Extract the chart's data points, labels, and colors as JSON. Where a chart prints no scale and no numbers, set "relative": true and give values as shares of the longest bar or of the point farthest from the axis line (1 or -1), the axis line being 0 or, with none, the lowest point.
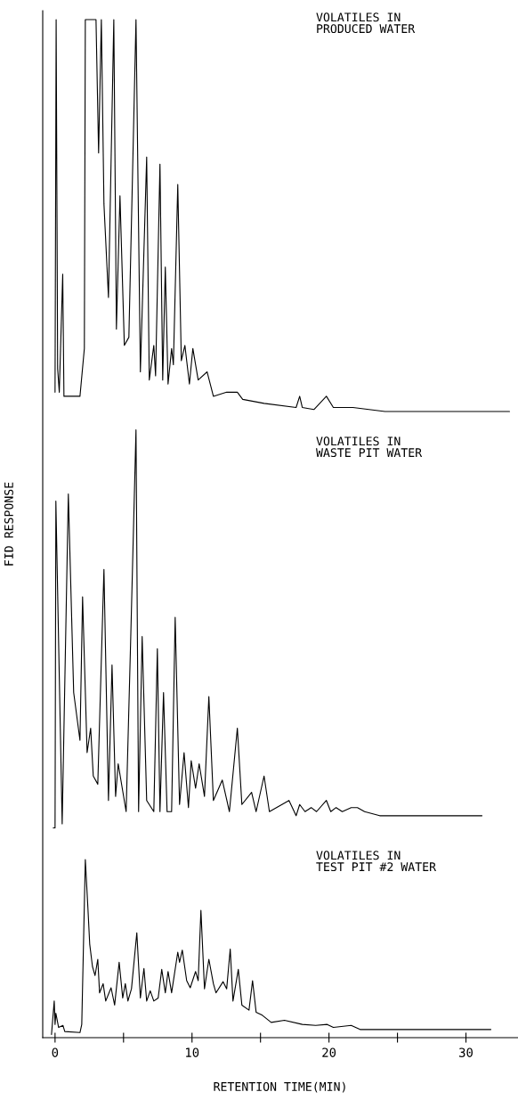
{
  "chart_data": {
    "type": "line",
    "xlabel": "RETENTION TIME(MIN)",
    "ylabel": "FID RESPONSE",
    "relative": true,
    "xlim": [
      -0.9,
      33.8
    ],
    "xticks": [
      0,
      {
        "value": 5,
        "label": null
      },
      10,
      {
        "value": 15,
        "label": null
      },
      20,
      {
        "value": 25,
        "label": null
      },
      30
    ],
    "annotations": [
      "VOLATILES IN\nPRODUCED WATER",
      "VOLATILES IN\nWASTE PIT WATER",
      "VOLATILES IN\nTEST PIT #2 WATER"
    ],
    "series": [
      {
        "color": "#000000",
        "x": [
          0.0,
          0.08,
          0.19,
          0.31,
          0.56,
          0.65,
          1.82,
          2.14,
          2.21,
          2.99,
          3.18,
          3.38,
          3.57,
          3.9,
          4.29,
          4.48,
          4.74,
          5.06,
          5.39,
          5.91,
          6.23,
          6.69,
          6.88,
          7.21,
          7.34,
          7.66,
          7.86,
          8.05,
          8.25,
          8.51,
          8.64,
          8.96,
          9.22,
          9.48,
          9.81,
          10.06,
          10.45,
          11.1,
          11.56,
          12.53,
          13.31,
          13.7,
          15.26,
          17.6,
          17.86,
          18.05,
          18.9,
          19.81,
          20.32,
          21.75,
          24.09,
          33.18
        ],
        "values": [
          0.634,
          1.0,
          0.657,
          0.634,
          0.75,
          0.63,
          0.63,
          0.677,
          1.0,
          1.0,
          0.869,
          1.0,
          0.819,
          0.727,
          1.0,
          0.696,
          0.827,
          0.68,
          0.688,
          1.0,
          0.654,
          0.865,
          0.646,
          0.68,
          0.65,
          0.858,
          0.646,
          0.757,
          0.642,
          0.677,
          0.661,
          0.838,
          0.665,
          0.68,
          0.642,
          0.677,
          0.646,
          0.654,
          0.63,
          0.634,
          0.634,
          0.627,
          0.623,
          0.619,
          0.63,
          0.619,
          0.617,
          0.63,
          0.619,
          0.619,
          0.615,
          0.615
        ]
      },
      {
        "color": "#000000",
        "x": [
          -0.13,
          0.0,
          0.06,
          0.52,
          0.97,
          1.36,
          1.82,
          2.01,
          2.34,
          2.6,
          2.79,
          3.12,
          3.57,
          3.9,
          4.16,
          4.42,
          4.61,
          5.19,
          5.52,
          5.91,
          6.1,
          6.36,
          6.69,
          7.21,
          7.47,
          7.66,
          7.92,
          8.18,
          8.51,
          8.77,
          9.09,
          9.42,
          9.74,
          9.94,
          10.26,
          10.52,
          10.91,
          11.23,
          11.56,
          12.21,
          12.73,
          13.31,
          13.64,
          14.35,
          14.68,
          15.26,
          15.65,
          17.08,
          17.6,
          17.86,
          18.25,
          18.7,
          19.09,
          19.81,
          20.13,
          20.52,
          20.97,
          21.62,
          22.08,
          22.6,
          23.7,
          31.17
        ],
        "values": [
          0.206,
          0.206,
          0.527,
          0.21,
          0.534,
          0.339,
          0.292,
          0.433,
          0.28,
          0.304,
          0.257,
          0.249,
          0.46,
          0.233,
          0.366,
          0.237,
          0.269,
          0.222,
          0.39,
          0.597,
          0.222,
          0.394,
          0.233,
          0.222,
          0.382,
          0.222,
          0.339,
          0.222,
          0.222,
          0.413,
          0.229,
          0.28,
          0.226,
          0.272,
          0.245,
          0.269,
          0.237,
          0.335,
          0.233,
          0.253,
          0.222,
          0.304,
          0.229,
          0.241,
          0.222,
          0.257,
          0.222,
          0.233,
          0.218,
          0.229,
          0.222,
          0.226,
          0.222,
          0.233,
          0.222,
          0.226,
          0.222,
          0.226,
          0.226,
          0.222,
          0.218,
          0.218
        ]
      },
      {
        "color": "#000000",
        "x": [
          -0.26,
          -0.06,
          0.0,
          0.06,
          0.26,
          0.58,
          0.71,
          1.82,
          1.95,
          2.21,
          2.4,
          2.53,
          2.73,
          2.92,
          3.12,
          3.25,
          3.51,
          3.7,
          4.09,
          4.35,
          4.68,
          4.94,
          5.13,
          5.32,
          5.58,
          5.97,
          6.23,
          6.49,
          6.69,
          6.95,
          7.21,
          7.53,
          7.79,
          8.05,
          8.25,
          8.51,
          8.96,
          9.09,
          9.29,
          9.61,
          9.87,
          10.26,
          10.45,
          10.65,
          10.91,
          11.23,
          11.56,
          11.75,
          12.27,
          12.53,
          12.79,
          12.99,
          13.38,
          13.64,
          14.16,
          14.42,
          14.68,
          15.13,
          15.78,
          16.75,
          18.05,
          19.03,
          19.87,
          20.32,
          21.62,
          22.27,
          23.9,
          31.82
        ],
        "values": [
          0.003,
          0.036,
          0.013,
          0.024,
          0.01,
          0.012,
          0.006,
          0.005,
          0.013,
          0.175,
          0.127,
          0.092,
          0.07,
          0.061,
          0.077,
          0.044,
          0.053,
          0.036,
          0.049,
          0.032,
          0.074,
          0.039,
          0.053,
          0.036,
          0.048,
          0.103,
          0.039,
          0.068,
          0.036,
          0.046,
          0.036,
          0.039,
          0.067,
          0.044,
          0.065,
          0.044,
          0.084,
          0.074,
          0.086,
          0.056,
          0.049,
          0.065,
          0.056,
          0.125,
          0.048,
          0.077,
          0.053,
          0.044,
          0.055,
          0.048,
          0.087,
          0.036,
          0.067,
          0.032,
          0.027,
          0.056,
          0.025,
          0.022,
          0.015,
          0.017,
          0.013,
          0.012,
          0.013,
          0.01,
          0.012,
          0.008,
          0.008,
          0.008
        ]
      }
    ]
  }
}
